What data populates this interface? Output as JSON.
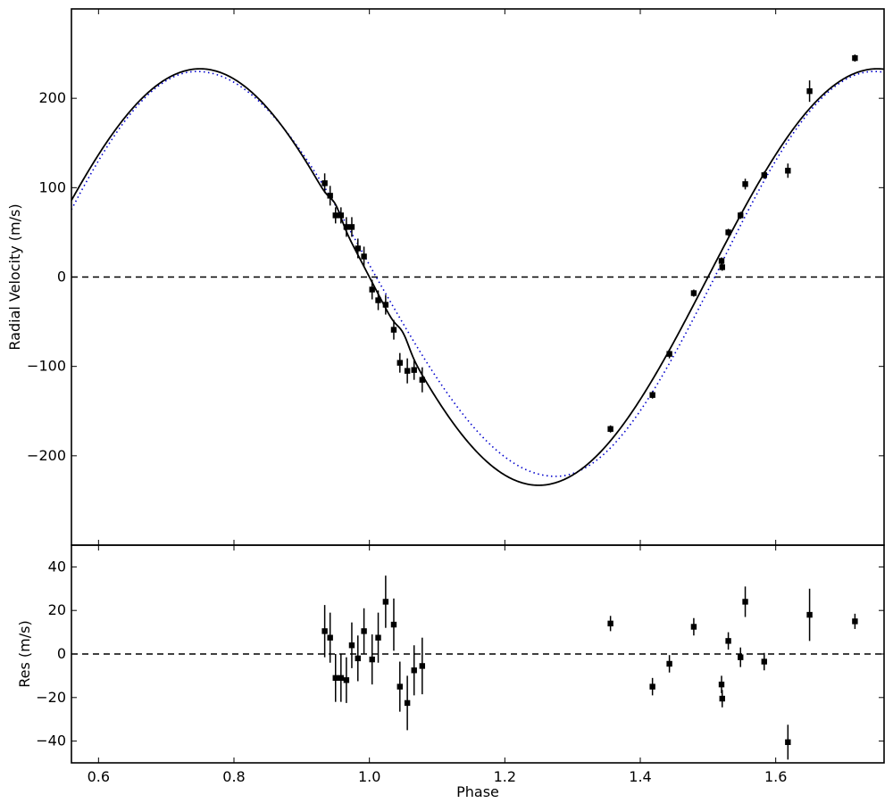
{
  "chart_data": [
    {
      "type": "scatter",
      "panel": "radial-velocity",
      "title": "",
      "xlabel": "",
      "ylabel": "Radial Velocity (m/s)",
      "xlim": [
        0.56,
        1.76
      ],
      "ylim": [
        -300,
        300
      ],
      "yticks": [
        -200,
        -100,
        0,
        100,
        200
      ],
      "ytick_labels": [
        "−200",
        "−100",
        "0",
        "100",
        "200"
      ],
      "xticks": [
        0.6,
        0.8,
        1.0,
        1.2,
        1.4,
        1.6
      ],
      "grid": false,
      "zero_line": "dashed",
      "series": [
        {
          "kind": "points",
          "color": "#000000",
          "x": [
            0.934,
            0.942,
            0.95,
            0.958,
            0.966,
            0.974,
            0.983,
            0.992,
            1.004,
            1.013,
            1.024,
            1.036,
            1.045,
            1.056,
            1.066,
            1.078,
            1.356,
            1.418,
            1.443,
            1.479,
            1.52,
            1.521,
            1.53,
            1.548,
            1.555,
            1.583,
            1.618,
            1.65,
            1.717
          ],
          "y": [
            105,
            91,
            69,
            69,
            56,
            56,
            32,
            23,
            -14,
            -26,
            -31,
            -59,
            -96,
            -105,
            -104,
            -115,
            -170,
            -132,
            -86,
            -18,
            18,
            11,
            50,
            69,
            104,
            114,
            119,
            208,
            245
          ],
          "yerr": [
            11,
            11,
            9,
            9,
            11,
            11,
            11,
            11,
            11,
            11,
            11,
            11,
            11,
            14,
            11,
            14,
            4,
            4,
            5,
            4,
            4,
            4,
            4,
            4,
            6,
            4,
            8,
            12,
            4
          ]
        },
        {
          "kind": "model-solid",
          "color": "#000000",
          "amplitude": 233,
          "peak_phase": 0.75,
          "bump_phases": [
            0.95,
            1.05
          ],
          "bump_amplitude": 9,
          "bump_width": 0.012
        },
        {
          "kind": "model-dotted",
          "color": "#0000cc",
          "amplitude_top": 230,
          "amplitude_bottom": 223,
          "peak_phase": 0.745,
          "trough_phase": 1.275
        }
      ]
    },
    {
      "type": "scatter",
      "panel": "residuals",
      "title": "",
      "xlabel": "Phase",
      "ylabel": "Res (m/s)",
      "xlim": [
        0.56,
        1.76
      ],
      "ylim": [
        -50,
        50
      ],
      "yticks": [
        -40,
        -20,
        0,
        20,
        40
      ],
      "ytick_labels": [
        "−40",
        "−20",
        "0",
        "20",
        "40"
      ],
      "xticks": [
        0.6,
        0.8,
        1.0,
        1.2,
        1.4,
        1.6
      ],
      "xtick_labels": [
        "0.6",
        "0.8",
        "1.0",
        "1.2",
        "1.4",
        "1.6"
      ],
      "grid": false,
      "zero_line": "dashed",
      "series": [
        {
          "kind": "points",
          "color": "#000000",
          "x": [
            0.934,
            0.942,
            0.95,
            0.958,
            0.966,
            0.974,
            0.983,
            0.992,
            1.004,
            1.013,
            1.024,
            1.036,
            1.045,
            1.056,
            1.066,
            1.078,
            1.356,
            1.418,
            1.443,
            1.479,
            1.52,
            1.521,
            1.53,
            1.548,
            1.555,
            1.583,
            1.618,
            1.65,
            1.717
          ],
          "y": [
            10.5,
            7.5,
            -11,
            -11,
            -12,
            4,
            -2,
            10.5,
            -2.5,
            7.5,
            24,
            13.5,
            -15,
            -22.5,
            -7.5,
            -5.5,
            14,
            -15,
            -4.5,
            12.5,
            -14,
            -20.5,
            6,
            -1.5,
            24,
            -3.5,
            -40.5,
            18,
            15
          ],
          "yerr": [
            12,
            11.5,
            11,
            11,
            10.5,
            10.5,
            10.5,
            10.5,
            11.5,
            11.5,
            12,
            12,
            11.5,
            12.5,
            11.5,
            13,
            3.5,
            4,
            4,
            4,
            4,
            4,
            4,
            4.5,
            7,
            4,
            8,
            12,
            3.5
          ]
        }
      ]
    }
  ]
}
